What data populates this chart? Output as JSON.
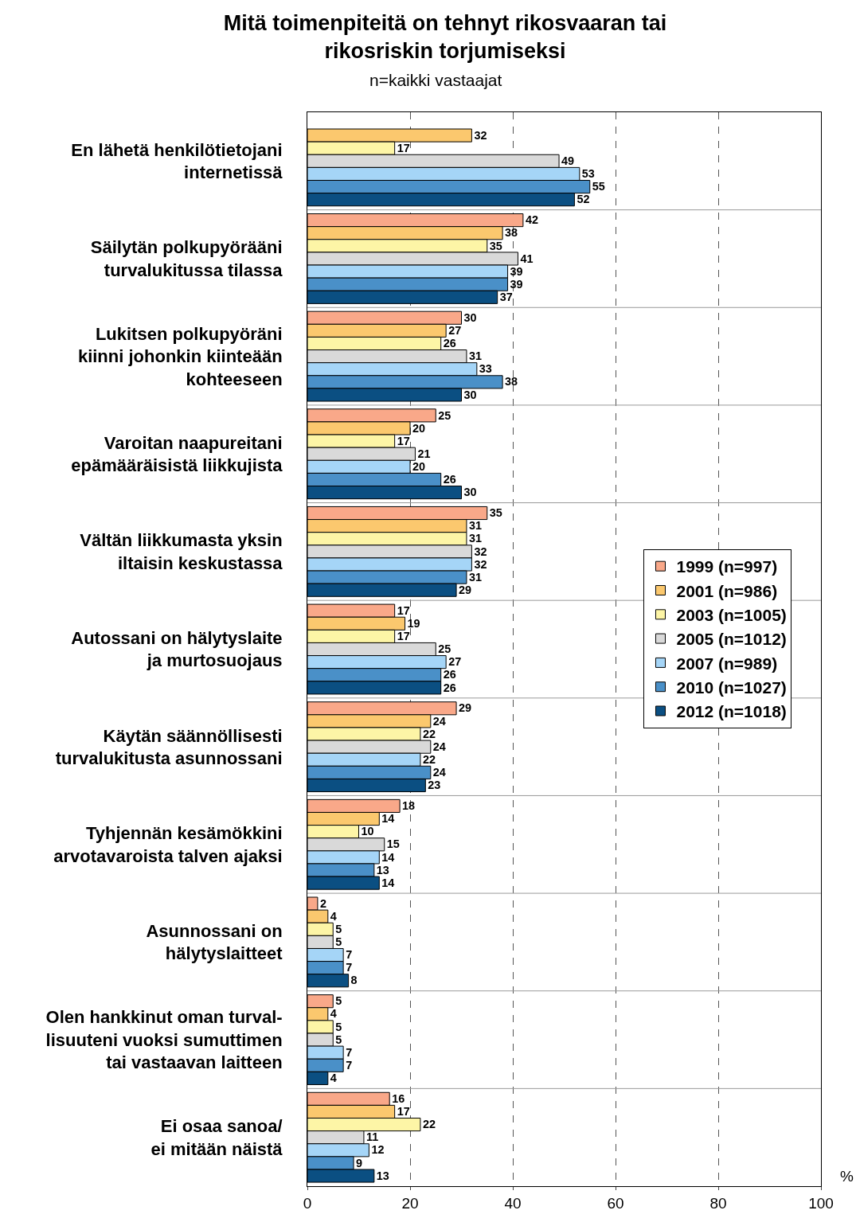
{
  "chart_data": {
    "type": "bar",
    "orientation": "horizontal",
    "title": "Mitä toimenpiteitä on tehnyt rikosvaaran tai\nrikosriskin torjumiseksi",
    "subtitle": "n=kaikki vastaajat",
    "xlabel": "%",
    "categories": [
      "En lähetä henkilötietojani\ninternetissä",
      "Säilytän polkupyörääni\nturvalukitussa tilassa",
      "Lukitsen polkupyöräni\nkiinni johonkin kiinteään\nkohteeseen",
      "Varoitan naapureitani\nepämääräisistä liikkujista",
      "Vältän liikkumasta yksin\niltaisin keskustassa",
      "Autossani on hälytyslaite\nja murtosuojaus",
      "Käytän säännöllisesti\nturvalukitusta asunnossani",
      "Tyhjennän kesämökkini\narvotavaroista talven ajaksi",
      "Asunnossani on\nhälytyslaitteet",
      "Olen hankkinut oman turval-\nlisuuteni vuoksi sumuttimen\ntai vastaavan laitteen",
      "Ei osaa sanoa/\nei mitään näistä"
    ],
    "series": [
      {
        "name": "1999 (n=997)",
        "color": "#f9a889",
        "values": [
          null,
          42,
          30,
          25,
          35,
          17,
          29,
          18,
          2,
          5,
          16
        ]
      },
      {
        "name": "2001 (n=986)",
        "color": "#fbc86e",
        "values": [
          32,
          38,
          27,
          20,
          31,
          19,
          24,
          14,
          4,
          4,
          17
        ]
      },
      {
        "name": "2003 (n=1005)",
        "color": "#fdf5a6",
        "values": [
          17,
          35,
          26,
          17,
          31,
          17,
          22,
          10,
          5,
          5,
          22
        ]
      },
      {
        "name": "2005 (n=1012)",
        "color": "#d9d9d9",
        "values": [
          49,
          41,
          31,
          21,
          32,
          25,
          24,
          15,
          5,
          5,
          11
        ]
      },
      {
        "name": "2007 (n=989)",
        "color": "#a5d5f7",
        "values": [
          53,
          39,
          33,
          20,
          32,
          27,
          22,
          14,
          7,
          7,
          12
        ]
      },
      {
        "name": "2010 (n=1027)",
        "color": "#4a90c8",
        "values": [
          55,
          39,
          38,
          26,
          31,
          26,
          24,
          13,
          7,
          7,
          9
        ]
      },
      {
        "name": "2012 (n=1018)",
        "color": "#0b4f82",
        "values": [
          52,
          37,
          30,
          30,
          29,
          26,
          23,
          14,
          8,
          4,
          13
        ]
      }
    ],
    "xlim": [
      0,
      100
    ],
    "xticks": [
      0,
      20,
      40,
      60,
      80,
      100
    ],
    "grid": true,
    "legend": "right",
    "data_labels": true
  }
}
